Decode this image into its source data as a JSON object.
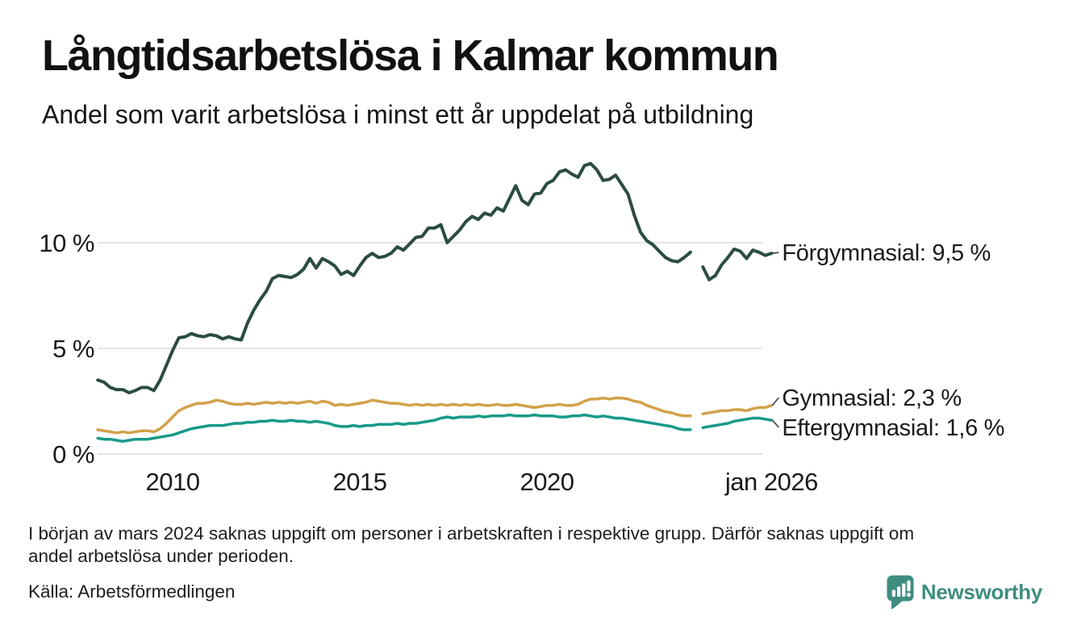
{
  "header": {
    "title": "Långtidsarbetslösa i Kalmar kommun",
    "subtitle": "Andel som varit arbetslösa i minst ett år uppdelat på utbildning"
  },
  "chart_data": {
    "type": "line",
    "title": "Långtidsarbetslösa i Kalmar kommun",
    "subtitle": "Andel som varit arbetslösa i minst ett år uppdelat på utbildning",
    "unit": "%",
    "x_start": 2008.0,
    "x_step_years": 0.1666667,
    "x_axis": {
      "range": [
        2008.0,
        2026.1
      ],
      "ticks": [
        {
          "t": 2010,
          "label": "2010"
        },
        {
          "t": 2015,
          "label": "2015"
        },
        {
          "t": 2020,
          "label": "2020"
        },
        {
          "t": 2026,
          "label": "jan 2026"
        }
      ]
    },
    "y_axis": {
      "range": [
        0,
        13.9
      ],
      "grid": true,
      "ticks": [
        {
          "v": 0,
          "label": "0 %"
        },
        {
          "v": 5,
          "label": "5 %"
        },
        {
          "v": 10,
          "label": "10 %"
        }
      ]
    },
    "data_gap_period": "late 2023 – early 2024 (no data)",
    "series": [
      {
        "name": "Förgymnasial",
        "label": "Förgymnasial: 9,5 %",
        "last_value": 9.5,
        "color": "#2b4c42",
        "values": [
          3.5,
          3.4,
          3.15,
          3.05,
          3.05,
          2.9,
          3.0,
          3.15,
          3.15,
          3.0,
          3.5,
          4.2,
          4.9,
          5.5,
          5.55,
          5.7,
          5.6,
          5.55,
          5.65,
          5.6,
          5.45,
          5.55,
          5.45,
          5.4,
          6.2,
          6.8,
          7.3,
          7.7,
          8.3,
          8.45,
          8.4,
          8.35,
          8.5,
          8.75,
          9.25,
          8.8,
          9.25,
          9.1,
          8.9,
          8.5,
          8.65,
          8.45,
          8.9,
          9.3,
          9.5,
          9.3,
          9.35,
          9.5,
          9.8,
          9.65,
          9.95,
          10.25,
          10.3,
          10.7,
          10.7,
          10.85,
          10.0,
          10.3,
          10.6,
          11.0,
          11.25,
          11.1,
          11.4,
          11.3,
          11.65,
          11.5,
          12.1,
          12.7,
          12.0,
          11.8,
          12.3,
          12.35,
          12.8,
          12.95,
          13.35,
          13.45,
          13.25,
          13.1,
          13.65,
          13.75,
          13.45,
          12.95,
          13.0,
          13.2,
          12.75,
          12.3,
          11.3,
          10.5,
          10.1,
          9.9,
          9.6,
          9.3,
          9.15,
          9.1,
          9.3,
          9.55,
          null,
          8.85,
          8.25,
          8.45,
          8.95,
          9.3,
          9.7,
          9.6,
          9.25,
          9.65,
          9.55,
          9.4,
          9.5
        ]
      },
      {
        "name": "Gymnasial",
        "label": "Gymnasial: 2,3 %",
        "last_value": 2.3,
        "color": "#d3a14a",
        "values": [
          1.15,
          1.1,
          1.05,
          1.0,
          1.05,
          1.0,
          1.05,
          1.1,
          1.1,
          1.05,
          1.2,
          1.45,
          1.75,
          2.05,
          2.2,
          2.3,
          2.4,
          2.4,
          2.45,
          2.55,
          2.5,
          2.4,
          2.35,
          2.35,
          2.4,
          2.35,
          2.4,
          2.45,
          2.4,
          2.45,
          2.4,
          2.45,
          2.4,
          2.45,
          2.5,
          2.4,
          2.5,
          2.45,
          2.3,
          2.35,
          2.3,
          2.35,
          2.4,
          2.45,
          2.55,
          2.5,
          2.45,
          2.4,
          2.4,
          2.35,
          2.3,
          2.35,
          2.3,
          2.35,
          2.3,
          2.35,
          2.3,
          2.35,
          2.3,
          2.35,
          2.3,
          2.35,
          2.3,
          2.3,
          2.35,
          2.3,
          2.3,
          2.35,
          2.3,
          2.25,
          2.2,
          2.25,
          2.3,
          2.3,
          2.35,
          2.3,
          2.3,
          2.35,
          2.5,
          2.6,
          2.6,
          2.65,
          2.6,
          2.65,
          2.65,
          2.6,
          2.5,
          2.45,
          2.3,
          2.2,
          2.1,
          2.0,
          1.95,
          1.85,
          1.8,
          1.8,
          null,
          1.9,
          1.95,
          2.0,
          2.05,
          2.05,
          2.1,
          2.1,
          2.05,
          2.15,
          2.2,
          2.2,
          2.3
        ]
      },
      {
        "name": "Eftergymnasial",
        "label": "Eftergymnasial: 1,6 %",
        "last_value": 1.6,
        "color": "#179a88",
        "values": [
          0.75,
          0.7,
          0.7,
          0.65,
          0.6,
          0.65,
          0.7,
          0.7,
          0.7,
          0.75,
          0.8,
          0.85,
          0.9,
          1.0,
          1.1,
          1.2,
          1.25,
          1.3,
          1.35,
          1.35,
          1.35,
          1.4,
          1.45,
          1.45,
          1.5,
          1.5,
          1.55,
          1.55,
          1.6,
          1.55,
          1.55,
          1.6,
          1.55,
          1.55,
          1.5,
          1.55,
          1.5,
          1.45,
          1.35,
          1.3,
          1.3,
          1.35,
          1.3,
          1.35,
          1.35,
          1.4,
          1.4,
          1.4,
          1.45,
          1.4,
          1.45,
          1.45,
          1.5,
          1.55,
          1.6,
          1.7,
          1.75,
          1.7,
          1.75,
          1.75,
          1.75,
          1.8,
          1.75,
          1.8,
          1.8,
          1.8,
          1.85,
          1.8,
          1.8,
          1.8,
          1.85,
          1.8,
          1.8,
          1.8,
          1.75,
          1.75,
          1.8,
          1.8,
          1.85,
          1.8,
          1.75,
          1.8,
          1.75,
          1.7,
          1.7,
          1.65,
          1.6,
          1.55,
          1.5,
          1.45,
          1.4,
          1.35,
          1.3,
          1.2,
          1.15,
          1.15,
          null,
          1.25,
          1.3,
          1.35,
          1.4,
          1.45,
          1.55,
          1.6,
          1.65,
          1.7,
          1.7,
          1.65,
          1.6
        ]
      }
    ]
  },
  "footnote": {
    "lines": [
      "I början av mars 2024 saknas uppgift om personer i arbetskraften i respektive grupp. Därför saknas uppgift om",
      "andel arbetslösa under perioden."
    ]
  },
  "source": "Källa: Arbetsförmedlingen",
  "brand": {
    "name": "Newsworthy",
    "color": "#3e8d80"
  }
}
